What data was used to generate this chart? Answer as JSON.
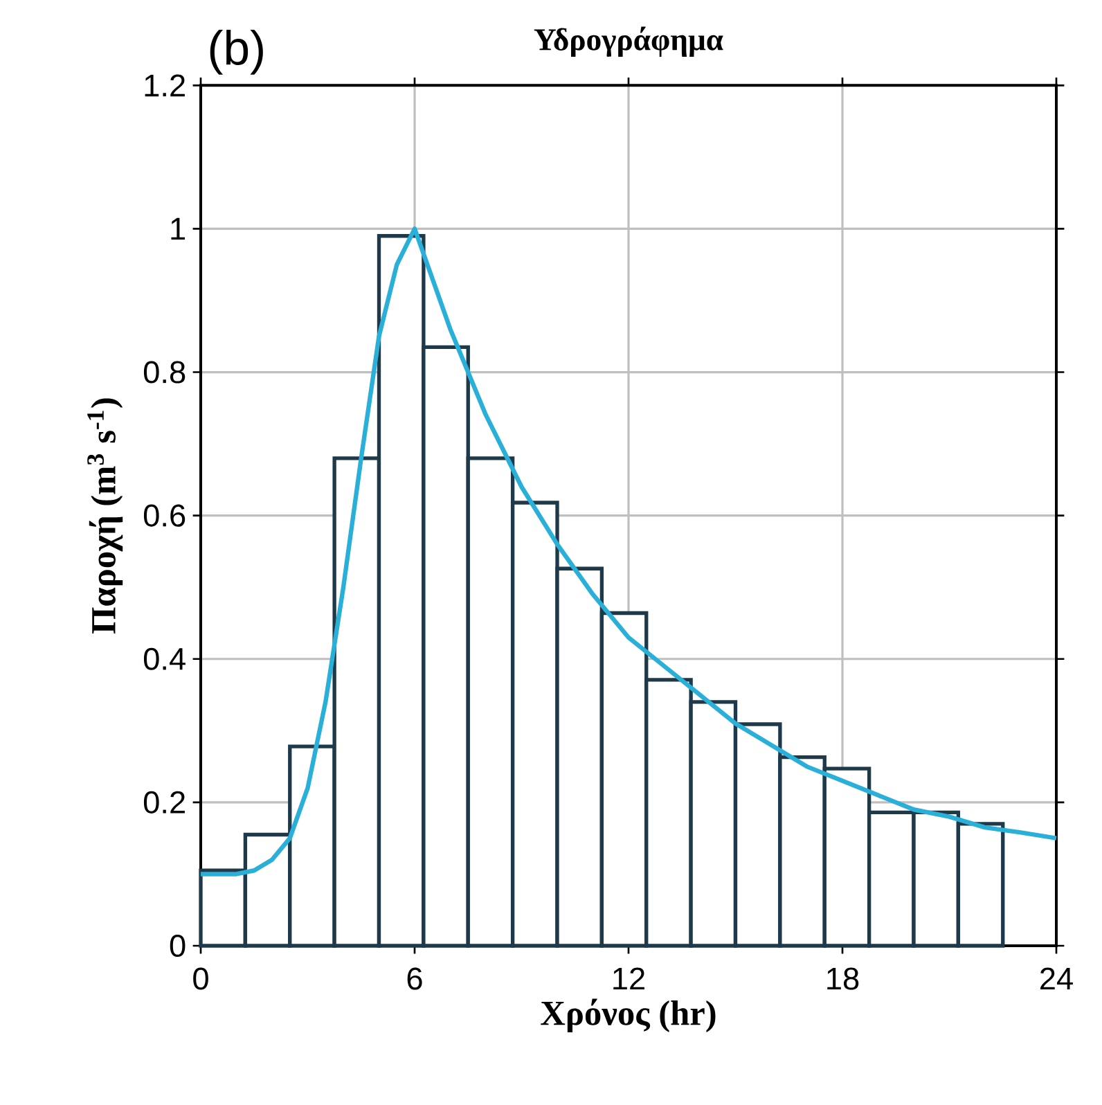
{
  "chart_data": {
    "type": "histogram",
    "title": "Υδρογράφημα",
    "xlabel": "Χρόνος (hr)",
    "ylabel": "Παροχή   (m$^{3}$ s$^{-1}$)",
    "annotations": [
      "(b)"
    ],
    "bins": [
      0,
      1.25,
      2.5,
      3.75,
      5,
      6.25,
      7.5,
      8.75,
      10,
      11.25,
      12.5,
      13.75,
      15,
      16.25,
      17.5,
      18.75,
      20,
      21.25,
      22.5
    ],
    "values": [
      0.105,
      0.155,
      0.278,
      0.68,
      0.99,
      0.835,
      0.68,
      0.618,
      0.526,
      0.464,
      0.371,
      0.34,
      0.309,
      0.263,
      0.247,
      0.186,
      0.186,
      0.17
    ],
    "color": "#ffffff",
    "series": [
      {
        "type": "line",
        "color": "#2ab0d8",
        "x": [
          0,
          1,
          1.5,
          2,
          2.5,
          3,
          3.5,
          4,
          4.5,
          5,
          5.5,
          6,
          6.5,
          7,
          8,
          9,
          10,
          11,
          12,
          13,
          14,
          15,
          16,
          17,
          18,
          19,
          20,
          21,
          22,
          23,
          24
        ],
        "values": [
          0.1,
          0.1,
          0.105,
          0.12,
          0.15,
          0.22,
          0.34,
          0.5,
          0.68,
          0.85,
          0.95,
          1.0,
          0.93,
          0.86,
          0.74,
          0.64,
          0.56,
          0.49,
          0.43,
          0.39,
          0.35,
          0.31,
          0.28,
          0.25,
          0.23,
          0.21,
          0.19,
          0.18,
          0.165,
          0.158,
          0.15
        ]
      }
    ],
    "xlim": [
      0,
      24
    ],
    "ylim": [
      0,
      1.2
    ],
    "xticks": [
      0,
      6,
      12,
      18,
      24
    ],
    "yticks": [
      0,
      0.2,
      0.4,
      0.6,
      0.8,
      1,
      1.2
    ],
    "grid": true
  }
}
